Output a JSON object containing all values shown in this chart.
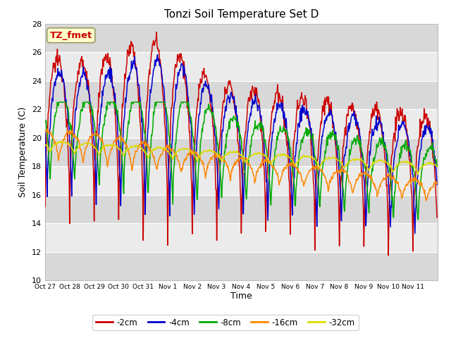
{
  "title": "Tonzi Soil Temperature Set D",
  "xlabel": "Time",
  "ylabel": "Soil Temperature (C)",
  "ylim": [
    10,
    28
  ],
  "yticks": [
    10,
    12,
    14,
    16,
    18,
    20,
    22,
    24,
    26,
    28
  ],
  "x_tick_labels": [
    "Oct 27",
    "Oct 28",
    "Oct 29",
    "Oct 30",
    "Oct 31",
    "Nov 1",
    "Nov 2",
    "Nov 3",
    "Nov 4",
    "Nov 5",
    "Nov 6",
    "Nov 7",
    "Nov 8",
    "Nov 9",
    "Nov 10",
    "Nov 11"
  ],
  "legend_labels": [
    "-2cm",
    "-4cm",
    "-8cm",
    "-16cm",
    "-32cm"
  ],
  "line_colors": [
    "#cc0000",
    "#0000cc",
    "#00aa00",
    "#ff8800",
    "#dddd00"
  ],
  "annotation_text": "TZ_fmet",
  "annotation_color": "#cc0000",
  "annotation_bg": "#ffffcc",
  "annotation_border": "#999966",
  "band_light": "#ebebeb",
  "band_dark": "#d8d8d8"
}
